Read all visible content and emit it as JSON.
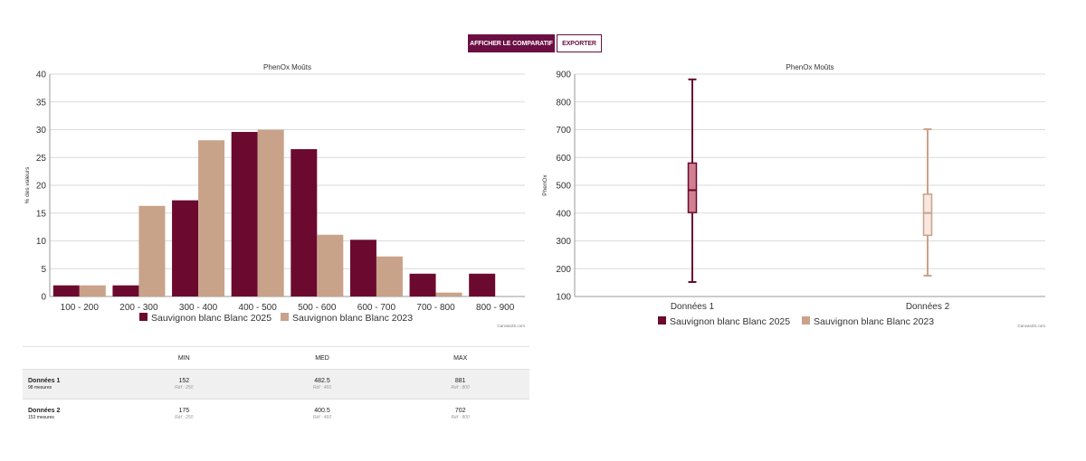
{
  "toolbar": {
    "compare_label": "AFFICHER LE COMPARATIF",
    "export_label": "EXPORTER"
  },
  "colors": {
    "series1": "#6b0a2e",
    "series2": "#c9a28a",
    "accent": "#6b0f43",
    "box1_fill": "#d08090",
    "box2_fill": "#f7e7e0"
  },
  "credit": "Canvas2S.com",
  "chart_data": [
    {
      "type": "bar",
      "title": "PhenOx Moûts",
      "xlabel": "",
      "ylabel": "% des valeurs",
      "ylim": [
        0,
        40
      ],
      "yticks": [
        0,
        5,
        10,
        15,
        20,
        25,
        30,
        35,
        40
      ],
      "grid": true,
      "legend_position": "bottom",
      "categories": [
        "100 - 200",
        "200 - 300",
        "300 - 400",
        "400 - 500",
        "500 - 600",
        "600 - 700",
        "700 - 800",
        "800 - 900"
      ],
      "series": [
        {
          "name": "Sauvignon blanc Blanc 2025",
          "values": [
            2,
            2,
            17.3,
            29.6,
            26.5,
            10.2,
            4.1,
            4.1
          ]
        },
        {
          "name": "Sauvignon blanc Blanc 2023",
          "values": [
            2,
            16.3,
            28.1,
            30,
            11.1,
            7.2,
            0.7,
            0
          ]
        }
      ]
    },
    {
      "type": "box",
      "title": "PhenOx Moûts",
      "xlabel": "",
      "ylabel": "PhenOx",
      "ylim": [
        100,
        900
      ],
      "yticks": [
        100,
        200,
        300,
        400,
        500,
        600,
        700,
        800,
        900
      ],
      "grid": true,
      "legend_position": "bottom",
      "categories": [
        "Données 1",
        "Données 2"
      ],
      "series": [
        {
          "name": "Sauvignon blanc Blanc 2025",
          "min": 152,
          "q1": 402,
          "median": 482.5,
          "q3": 580,
          "max": 881
        },
        {
          "name": "Sauvignon blanc Blanc 2023",
          "min": 175,
          "q1": 320,
          "median": 400.5,
          "q3": 468,
          "max": 702
        }
      ]
    }
  ],
  "stats": {
    "columns": [
      "MIN",
      "MED",
      "MAX"
    ],
    "rows": [
      {
        "name": "Données 1",
        "count": "98 mesures",
        "min": "152",
        "min_ref": "Réf : 250",
        "med": "482.5",
        "med_ref": "Réf : 460",
        "max": "881",
        "max_ref": "Réf : 800"
      },
      {
        "name": "Données 2",
        "count": "153 mesures",
        "min": "175",
        "min_ref": "Réf : 250",
        "med": "400.5",
        "med_ref": "Réf : 460",
        "max": "702",
        "max_ref": "Réf : 800"
      }
    ]
  }
}
